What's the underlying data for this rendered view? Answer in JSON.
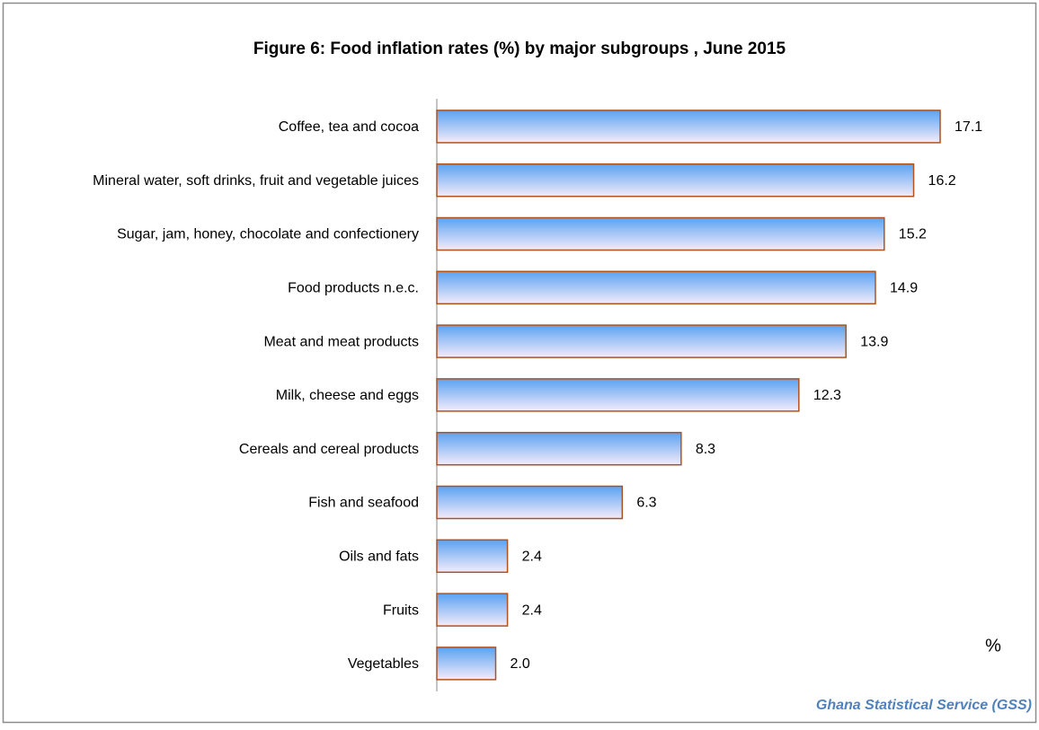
{
  "chart_data": {
    "type": "bar",
    "orientation": "horizontal",
    "title": "Figure 6: Food inflation rates (%) by  major subgroups , June 2015",
    "categories": [
      "Coffee, tea and cocoa",
      "Mineral water, soft drinks, fruit and vegetable juices",
      "Sugar, jam, honey, chocolate and confectionery",
      "Food products n.e.c.",
      "Meat and meat products",
      "Milk, cheese and eggs",
      "Cereals and cereal products",
      "Fish and seafood",
      "Oils and fats",
      "Fruits",
      "Vegetables"
    ],
    "values": [
      17.1,
      16.2,
      15.2,
      14.9,
      13.9,
      12.3,
      8.3,
      6.3,
      2.4,
      2.4,
      2.0
    ],
    "value_labels": [
      "17.1",
      "16.2",
      "15.2",
      "14.9",
      "13.9",
      "12.3",
      "8.3",
      "6.3",
      "2.4",
      "2.4",
      "2.0"
    ],
    "color": "#5aa2f2",
    "edge_color": "#b0521e",
    "xlim": [
      0,
      20
    ],
    "axis_unit": "%",
    "source": "Ghana Statistical Service (GSS)"
  }
}
